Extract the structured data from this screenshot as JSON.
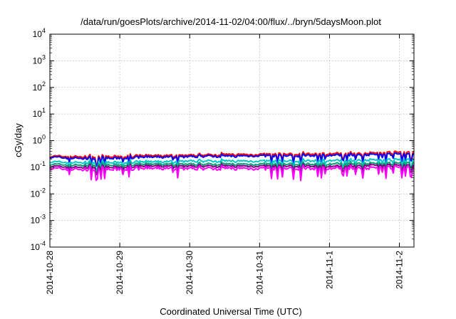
{
  "chart_data": {
    "type": "line",
    "title": "/data/run/goesPlots/archive/2014-11-02/04:00/flux/../bryn/5daysMoon.plot",
    "xlabel": "Coordinated Universal Time (UTC)",
    "ylabel": "cGy/day",
    "yscale": "log",
    "ylim": [
      0.0001,
      10000
    ],
    "yticks": [
      {
        "base": "10",
        "exp": "4"
      },
      {
        "base": "10",
        "exp": "3"
      },
      {
        "base": "10",
        "exp": "2"
      },
      {
        "base": "10",
        "exp": "1"
      },
      {
        "base": "10",
        "exp": "0"
      },
      {
        "base": "10",
        "exp": "-1"
      },
      {
        "base": "10",
        "exp": "-2"
      },
      {
        "base": "10",
        "exp": "-3"
      },
      {
        "base": "10",
        "exp": "-4"
      }
    ],
    "xlim": [
      "2014-10-28",
      "2014-11-02 05:00"
    ],
    "xticks": [
      "2014-10-28",
      "2014-10-29",
      "2014-10-30",
      "2014-10-31",
      "2014-11-1",
      "2014-11-2"
    ],
    "grid": true,
    "legend": "none",
    "series": [
      {
        "color": "#ff0000",
        "values": [
          0.26,
          0.25,
          0.24,
          0.25,
          0.27,
          0.27,
          0.28,
          0.29,
          0.3,
          0.3,
          0.31,
          0.31,
          0.32,
          0.33,
          0.34,
          0.36,
          0.37
        ]
      },
      {
        "color": "#0000ff",
        "values": [
          0.24,
          0.22,
          0.21,
          0.22,
          0.24,
          0.24,
          0.25,
          0.26,
          0.26,
          0.27,
          0.27,
          0.27,
          0.28,
          0.29,
          0.3,
          0.31,
          0.32
        ]
      },
      {
        "color": "#00c8c8",
        "values": [
          0.16,
          0.15,
          0.15,
          0.15,
          0.16,
          0.16,
          0.17,
          0.17,
          0.17,
          0.17,
          0.17,
          0.17,
          0.18,
          0.18,
          0.19,
          0.19,
          0.2
        ]
      },
      {
        "color": "#009e73",
        "values": [
          0.13,
          0.12,
          0.12,
          0.12,
          0.13,
          0.13,
          0.13,
          0.13,
          0.13,
          0.13,
          0.13,
          0.13,
          0.13,
          0.14,
          0.14,
          0.14,
          0.15
        ]
      },
      {
        "color": "#800080",
        "values": [
          0.11,
          0.1,
          0.1,
          0.1,
          0.11,
          0.11,
          0.11,
          0.11,
          0.11,
          0.11,
          0.11,
          0.11,
          0.11,
          0.11,
          0.12,
          0.12,
          0.12
        ]
      },
      {
        "color": "#ff00ff",
        "values": [
          0.09,
          0.085,
          0.08,
          0.085,
          0.09,
          0.09,
          0.09,
          0.09,
          0.09,
          0.09,
          0.09,
          0.09,
          0.09,
          0.095,
          0.095,
          0.1,
          0.1
        ]
      }
    ]
  }
}
